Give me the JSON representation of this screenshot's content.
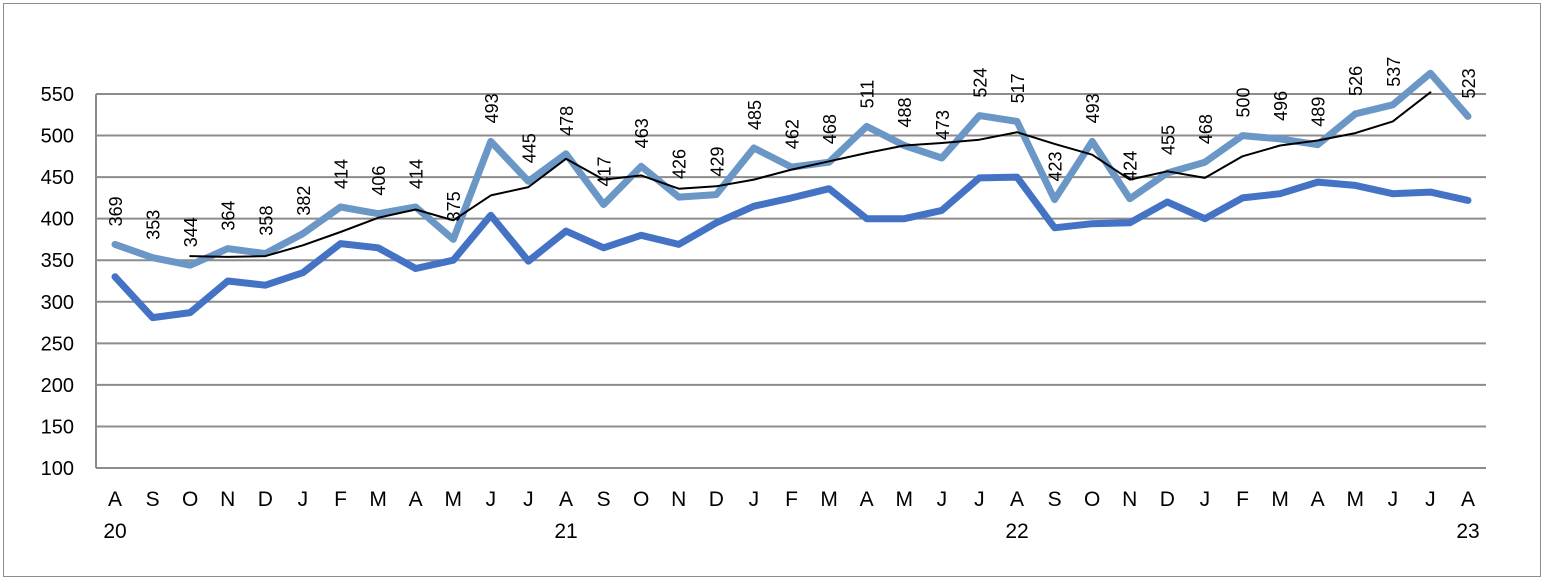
{
  "chart_data": {
    "type": "line",
    "title": "",
    "xlabel": "",
    "ylabel": "",
    "ylim": [
      100,
      550
    ],
    "yticks": [
      "100",
      "150",
      "200",
      "250",
      "300",
      "350",
      "400",
      "450",
      "500",
      "550"
    ],
    "grid": true,
    "legend": "none",
    "categories": [
      "A",
      "S",
      "O",
      "N",
      "D",
      "J",
      "F",
      "M",
      "A",
      "M",
      "J",
      "J",
      "A",
      "S",
      "O",
      "N",
      "D",
      "J",
      "F",
      "M",
      "A",
      "M",
      "J",
      "J",
      "A",
      "S",
      "O",
      "N",
      "D",
      "J",
      "F",
      "M",
      "A",
      "M",
      "J",
      "J",
      "A"
    ],
    "year_labels": [
      {
        "index": 0,
        "text": "20"
      },
      {
        "index": 12,
        "text": "21"
      },
      {
        "index": 24,
        "text": "22"
      },
      {
        "index": 36,
        "text": "23"
      }
    ],
    "series": [
      {
        "color": "#6b97c7",
        "labeled": true,
        "values": [
          369,
          353,
          344,
          364,
          358,
          382,
          414,
          406,
          414,
          375,
          493,
          445,
          478,
          417,
          463,
          426,
          429,
          485,
          462,
          468,
          511,
          488,
          473,
          524,
          517,
          423,
          493,
          424,
          455,
          468,
          500,
          496,
          489,
          526,
          537,
          575,
          523
        ],
        "labels": [
          "369",
          "353",
          "344",
          "364",
          "358",
          "382",
          "414",
          "406",
          "414",
          "375",
          "493",
          "445",
          "478",
          "417",
          "463",
          "426",
          "429",
          "485",
          "462",
          "468",
          "511",
          "488",
          "473",
          "524",
          "517",
          "423",
          "493",
          "424",
          "455",
          "468",
          "500",
          "496",
          "489",
          "526",
          "537",
          "",
          "523"
        ]
      },
      {
        "color": "#4472c4",
        "labeled": false,
        "values": [
          330,
          281,
          287,
          325,
          320,
          335,
          370,
          365,
          340,
          350,
          404,
          349,
          385,
          365,
          380,
          369,
          395,
          415,
          425,
          436,
          400,
          400,
          410,
          449,
          450,
          389,
          394,
          395,
          420,
          400,
          425,
          430,
          444,
          440,
          430,
          432,
          422
        ]
      },
      {
        "color": "#000000",
        "labeled": false,
        "values": [
          null,
          null,
          355,
          354,
          355,
          368,
          384,
          401,
          411,
          398,
          428,
          438,
          472,
          447,
          452,
          436,
          439,
          447,
          459,
          469,
          479,
          488,
          491,
          495,
          504,
          490,
          477,
          447,
          457,
          449,
          475,
          488,
          494,
          503,
          517,
          552,
          null
        ]
      }
    ]
  }
}
